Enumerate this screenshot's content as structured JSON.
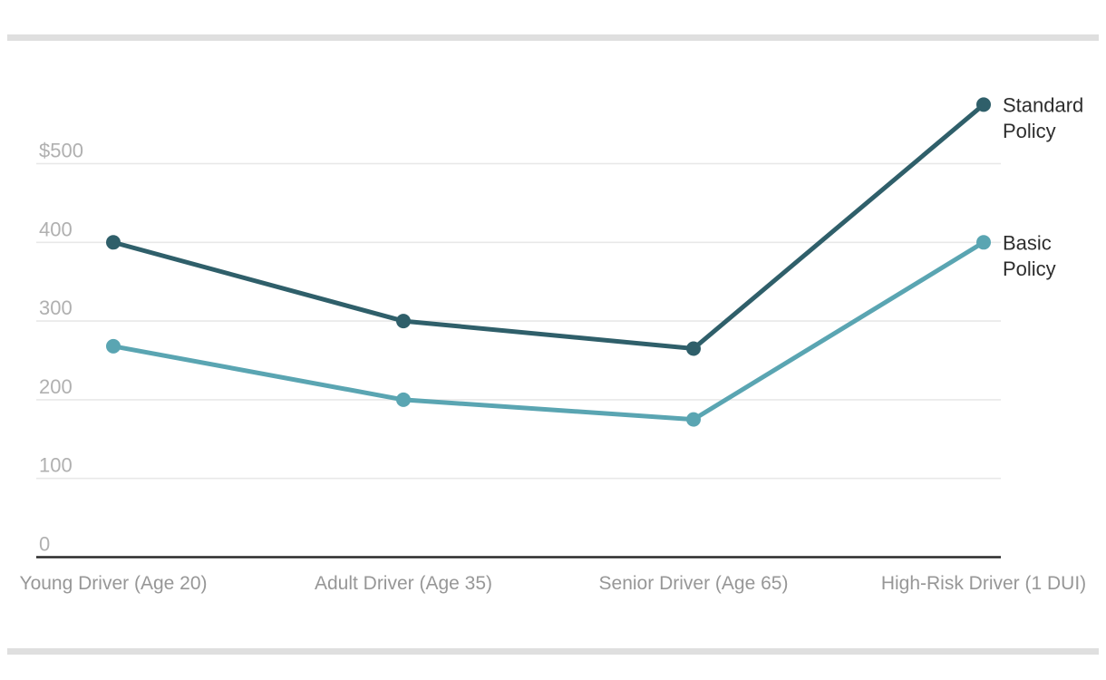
{
  "page": {
    "background": "#ffffff"
  },
  "colors": {
    "divider": "#dfdfdf",
    "grid": "#e8e8e8",
    "axis": "#2b2b2b",
    "y_tick_text": "#b0b0b0",
    "x_tick_text": "#979797",
    "legend_text": "#2d2d2d"
  },
  "chart_data": {
    "type": "line",
    "categories": [
      "Young Driver (Age 20)",
      "Adult Driver (Age 35)",
      "Senior Driver (Age 65)",
      "High-Risk Driver (1 DUI)"
    ],
    "series": [
      {
        "name": "Standard Policy",
        "legend_lines": [
          "Standard",
          "Policy"
        ],
        "color": "#2f5f6a",
        "values": [
          400,
          300,
          265,
          575
        ]
      },
      {
        "name": "Basic Policy",
        "legend_lines": [
          "Basic",
          "Policy"
        ],
        "color": "#5aa5b2",
        "values": [
          268,
          200,
          175,
          400
        ]
      }
    ],
    "y_ticks": [
      {
        "value": 500,
        "label": "$500"
      },
      {
        "value": 400,
        "label": "400"
      },
      {
        "value": 300,
        "label": "300"
      },
      {
        "value": 200,
        "label": "200"
      },
      {
        "value": 100,
        "label": "100"
      },
      {
        "value": 0,
        "label": "0"
      }
    ],
    "ylim": [
      0,
      590
    ],
    "grid": true,
    "legend_position": "right-of-line-ends"
  }
}
